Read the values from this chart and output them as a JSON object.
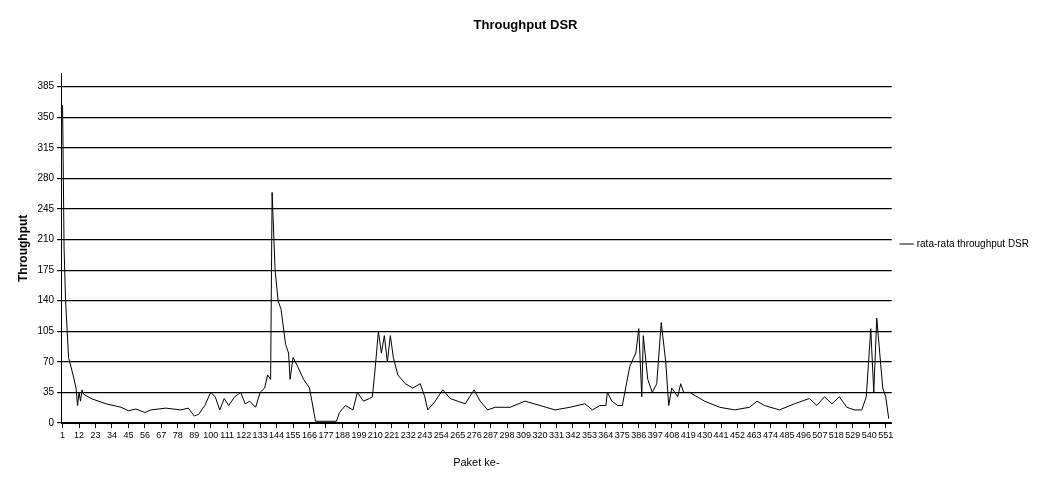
{
  "chart_data": {
    "type": "line",
    "title": "Throughput DSR",
    "xlabel": "Paket ke-",
    "ylabel": "Throughput",
    "xlim": [
      0,
      555
    ],
    "xticks": [
      1,
      12,
      23,
      34,
      45,
      56,
      67,
      78,
      89,
      100,
      111,
      122,
      133,
      144,
      155,
      166,
      177,
      188,
      199,
      210,
      221,
      232,
      243,
      254,
      265,
      276,
      287,
      298,
      309,
      320,
      331,
      342,
      353,
      364,
      375,
      386,
      397,
      408,
      419,
      430,
      441,
      452,
      463,
      474,
      485,
      496,
      507,
      518,
      529,
      540,
      551
    ],
    "ylim": [
      0,
      400
    ],
    "yticks": [
      0,
      35,
      70,
      105,
      140,
      175,
      210,
      245,
      280,
      315,
      350,
      385
    ],
    "grid": "y",
    "legend": "right",
    "marker": "none",
    "line_style": "solid",
    "series": [
      {
        "name": "rata-rata throughput DSR",
        "color": "#000000",
        "x": [
          1,
          2,
          3,
          5,
          8,
          10,
          11,
          12,
          13,
          14,
          15,
          20,
          30,
          40,
          45,
          50,
          56,
          60,
          70,
          80,
          85,
          89,
          92,
          96,
          100,
          103,
          106,
          109,
          112,
          116,
          120,
          123,
          126,
          130,
          133,
          136,
          138,
          140,
          141,
          143,
          145,
          147,
          150,
          152,
          153,
          155,
          158,
          162,
          166,
          170,
          175,
          184,
          186,
          190,
          195,
          198,
          202,
          206,
          208,
          210,
          212,
          214,
          216,
          218,
          220,
          222,
          225,
          230,
          235,
          240,
          243,
          245,
          250,
          255,
          260,
          265,
          270,
          276,
          280,
          285,
          290,
          300,
          310,
          320,
          330,
          340,
          350,
          355,
          360,
          364,
          365,
          368,
          372,
          375,
          380,
          384,
          386,
          388,
          389,
          392,
          395,
          398,
          401,
          404,
          406,
          408,
          412,
          414,
          416,
          420,
          425,
          430,
          440,
          450,
          460,
          465,
          470,
          480,
          490,
          495,
          500,
          505,
          510,
          515,
          520,
          525,
          530,
          535,
          538,
          541,
          543,
          545,
          547,
          549,
          551,
          553
        ],
        "values": [
          364,
          200,
          140,
          75,
          55,
          40,
          20,
          35,
          25,
          38,
          33,
          28,
          22,
          18,
          14,
          16,
          12,
          15,
          17,
          15,
          17,
          8,
          10,
          20,
          35,
          30,
          15,
          28,
          20,
          30,
          35,
          22,
          25,
          18,
          35,
          40,
          55,
          50,
          264,
          175,
          140,
          130,
          90,
          80,
          50,
          75,
          65,
          50,
          40,
          2,
          2,
          2,
          12,
          20,
          15,
          35,
          25,
          28,
          30,
          65,
          105,
          80,
          100,
          70,
          100,
          75,
          55,
          45,
          40,
          45,
          30,
          15,
          25,
          38,
          28,
          25,
          22,
          38,
          25,
          15,
          18,
          18,
          25,
          20,
          15,
          18,
          22,
          15,
          20,
          20,
          35,
          25,
          20,
          20,
          65,
          80,
          108,
          30,
          100,
          50,
          35,
          45,
          115,
          70,
          20,
          40,
          30,
          45,
          35,
          35,
          30,
          25,
          18,
          15,
          18,
          25,
          20,
          15,
          22,
          25,
          28,
          20,
          30,
          22,
          30,
          18,
          15,
          15,
          30,
          108,
          35,
          120,
          80,
          40,
          30,
          5
        ]
      }
    ]
  }
}
